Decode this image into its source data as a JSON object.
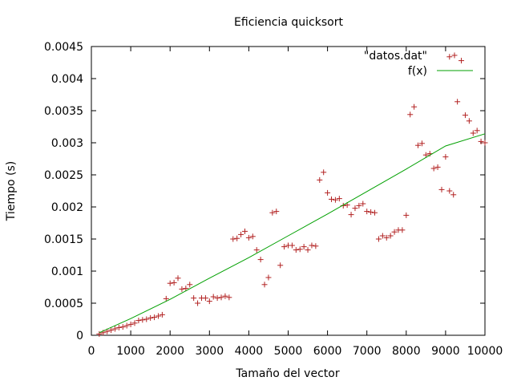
{
  "chart_data": {
    "type": "scatter",
    "title": "Eficiencia quicksort",
    "xlabel": "Tamaño del vector",
    "ylabel": "Tiempo (s)",
    "xlim": [
      0,
      10000
    ],
    "ylim": [
      0,
      0.0045
    ],
    "x_ticks": [
      "0",
      "1000",
      "2000",
      "3000",
      "4000",
      "5000",
      "6000",
      "7000",
      "8000",
      "9000",
      "10000"
    ],
    "y_ticks": [
      "0",
      "0.0005",
      "0.001",
      "0.0015",
      "0.002",
      "0.0025",
      "0.003",
      "0.0035",
      "0.004",
      "0.0045"
    ],
    "grid": false,
    "legend_position": "top-right",
    "series": [
      {
        "name": "\"datos.dat\"",
        "type": "scatter",
        "marker": "plus",
        "color": "#b22222",
        "points": [
          [
            200,
            2e-05
          ],
          [
            300,
            4e-05
          ],
          [
            400,
            6e-05
          ],
          [
            500,
            8e-05
          ],
          [
            600,
            0.0001
          ],
          [
            700,
            0.00012
          ],
          [
            800,
            0.00013
          ],
          [
            900,
            0.00015
          ],
          [
            1000,
            0.00017
          ],
          [
            1100,
            0.00019
          ],
          [
            1200,
            0.00023
          ],
          [
            1300,
            0.00024
          ],
          [
            1400,
            0.00025
          ],
          [
            1500,
            0.00027
          ],
          [
            1600,
            0.00028
          ],
          [
            1700,
            0.0003
          ],
          [
            1800,
            0.00032
          ],
          [
            1900,
            0.00057
          ],
          [
            2000,
            0.00081
          ],
          [
            2100,
            0.00082
          ],
          [
            2200,
            0.00089
          ],
          [
            2300,
            0.00072
          ],
          [
            2400,
            0.00073
          ],
          [
            2500,
            0.00079
          ],
          [
            2600,
            0.00058
          ],
          [
            2700,
            0.0005
          ],
          [
            2800,
            0.00058
          ],
          [
            2900,
            0.00058
          ],
          [
            3000,
            0.00053
          ],
          [
            3100,
            0.0006
          ],
          [
            3200,
            0.00058
          ],
          [
            3300,
            0.00059
          ],
          [
            3400,
            0.00061
          ],
          [
            3500,
            0.00059
          ],
          [
            3600,
            0.0015
          ],
          [
            3700,
            0.00151
          ],
          [
            3800,
            0.00157
          ],
          [
            3900,
            0.00162
          ],
          [
            4000,
            0.00152
          ],
          [
            4100,
            0.00154
          ],
          [
            4200,
            0.00133
          ],
          [
            4300,
            0.00118
          ],
          [
            4400,
            0.00079
          ],
          [
            4500,
            0.0009
          ],
          [
            4600,
            0.00191
          ],
          [
            4700,
            0.00193
          ],
          [
            4800,
            0.00109
          ],
          [
            4900,
            0.00138
          ],
          [
            5000,
            0.0014
          ],
          [
            5100,
            0.0014
          ],
          [
            5200,
            0.00133
          ],
          [
            5300,
            0.00134
          ],
          [
            5400,
            0.00138
          ],
          [
            5500,
            0.00133
          ],
          [
            5600,
            0.0014
          ],
          [
            5700,
            0.00139
          ],
          [
            5800,
            0.00242
          ],
          [
            5900,
            0.00254
          ],
          [
            6000,
            0.00222
          ],
          [
            6100,
            0.00212
          ],
          [
            6200,
            0.00211
          ],
          [
            6300,
            0.00213
          ],
          [
            6400,
            0.00202
          ],
          [
            6500,
            0.00203
          ],
          [
            6600,
            0.00188
          ],
          [
            6700,
            0.00198
          ],
          [
            6800,
            0.00202
          ],
          [
            6900,
            0.00205
          ],
          [
            7000,
            0.00193
          ],
          [
            7100,
            0.00192
          ],
          [
            7200,
            0.00191
          ],
          [
            7300,
            0.0015
          ],
          [
            7400,
            0.00155
          ],
          [
            7500,
            0.00152
          ],
          [
            7600,
            0.00155
          ],
          [
            7700,
            0.00161
          ],
          [
            7800,
            0.00164
          ],
          [
            7900,
            0.00164
          ],
          [
            8000,
            0.00187
          ],
          [
            8100,
            0.00344
          ],
          [
            8200,
            0.00356
          ],
          [
            8300,
            0.00296
          ],
          [
            8400,
            0.00299
          ],
          [
            8500,
            0.00281
          ],
          [
            8600,
            0.00283
          ],
          [
            8700,
            0.0026
          ],
          [
            8800,
            0.00262
          ],
          [
            8900,
            0.00227
          ],
          [
            9000,
            0.00278
          ],
          [
            9100,
            0.00225
          ],
          [
            9200,
            0.00219
          ],
          [
            9100,
            0.00434
          ],
          [
            9300,
            0.00364
          ],
          [
            9400,
            0.00428
          ],
          [
            9500,
            0.00343
          ],
          [
            9600,
            0.00334
          ],
          [
            9700,
            0.00315
          ],
          [
            9800,
            0.00319
          ],
          [
            9900,
            0.00302
          ],
          [
            10000,
            0.003
          ]
        ]
      },
      {
        "name": "f(x)",
        "type": "line",
        "color": "#00a000",
        "x": [
          200,
          1000,
          2000,
          3000,
          4000,
          5000,
          6000,
          7000,
          8000,
          9000,
          10000
        ],
        "y": [
          4e-05,
          0.00026,
          0.00056,
          0.00089,
          0.00121,
          0.00155,
          0.00189,
          0.00224,
          0.00259,
          0.00295,
          0.00314
        ]
      }
    ]
  }
}
